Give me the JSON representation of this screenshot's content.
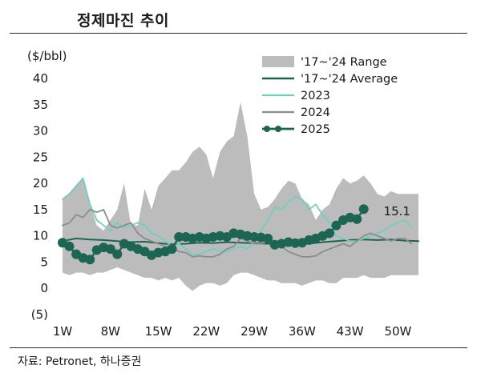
{
  "page": {
    "title": "정제마진 추이",
    "source": "자료: Petronet, 하나증권"
  },
  "colors": {
    "range_fill": "#bcbcbc",
    "average": "#1d6553",
    "y2023": "#6fd0c0",
    "y2024": "#8c8c8c",
    "y2025": "#1d6553"
  },
  "chart_data": {
    "type": "line",
    "ylabel": "($/bbl)",
    "ylim": [
      -5,
      40
    ],
    "yticks": [
      40,
      35,
      30,
      25,
      20,
      15,
      10,
      5,
      0,
      -5
    ],
    "ytick_labels": [
      "40",
      "35",
      "30",
      "25",
      "20",
      "15",
      "10",
      "5",
      "0",
      "(5)"
    ],
    "xlim": [
      1,
      53
    ],
    "xticks": [
      1,
      8,
      15,
      22,
      29,
      36,
      43,
      50
    ],
    "xtick_labels": [
      "1W",
      "8W",
      "15W",
      "22W",
      "29W",
      "36W",
      "43W",
      "50W"
    ],
    "annotation": {
      "text": "15.1",
      "week": 41,
      "value": 15.1
    },
    "legend": [
      "'17~'24 Range",
      "'17~'24 Average",
      "2023",
      "2024",
      "2025"
    ],
    "range": {
      "name": "'17~'24 Range",
      "upper": [
        [
          1,
          17
        ],
        [
          2,
          18
        ],
        [
          3,
          19.5
        ],
        [
          4,
          21
        ],
        [
          5,
          16
        ],
        [
          6,
          12
        ],
        [
          7,
          11
        ],
        [
          8,
          13
        ],
        [
          9,
          15
        ],
        [
          10,
          20
        ],
        [
          11,
          12
        ],
        [
          12,
          12
        ],
        [
          13,
          19
        ],
        [
          14,
          15
        ],
        [
          15,
          19.5
        ],
        [
          16,
          21
        ],
        [
          17,
          22.5
        ],
        [
          18,
          22.5
        ],
        [
          19,
          24
        ],
        [
          20,
          26
        ],
        [
          21,
          27
        ],
        [
          22,
          25.5
        ],
        [
          23,
          21
        ],
        [
          24,
          26
        ],
        [
          25,
          28
        ],
        [
          26,
          29
        ],
        [
          27,
          35.5
        ],
        [
          28,
          29
        ],
        [
          29,
          18
        ],
        [
          30,
          15
        ],
        [
          31,
          15.5
        ],
        [
          32,
          17
        ],
        [
          33,
          19
        ],
        [
          34,
          20.5
        ],
        [
          35,
          20
        ],
        [
          36,
          17
        ],
        [
          37,
          16
        ],
        [
          38,
          13
        ],
        [
          39,
          15
        ],
        [
          40,
          16
        ],
        [
          41,
          19
        ],
        [
          42,
          21
        ],
        [
          43,
          20
        ],
        [
          44,
          20.5
        ],
        [
          45,
          21.5
        ],
        [
          46,
          20
        ],
        [
          47,
          18
        ],
        [
          48,
          17.5
        ],
        [
          49,
          18.5
        ],
        [
          50,
          18
        ],
        [
          51,
          18
        ],
        [
          52,
          18
        ],
        [
          53,
          18
        ]
      ],
      "lower": [
        [
          1,
          3
        ],
        [
          2,
          2.5
        ],
        [
          3,
          3
        ],
        [
          4,
          3
        ],
        [
          5,
          2.5
        ],
        [
          6,
          3
        ],
        [
          7,
          3
        ],
        [
          8,
          3.5
        ],
        [
          9,
          4
        ],
        [
          10,
          3.5
        ],
        [
          11,
          3
        ],
        [
          12,
          2.5
        ],
        [
          13,
          2
        ],
        [
          14,
          2
        ],
        [
          15,
          1.5
        ],
        [
          16,
          2
        ],
        [
          17,
          1.5
        ],
        [
          18,
          2
        ],
        [
          19,
          0.5
        ],
        [
          20,
          -0.5
        ],
        [
          21,
          0.5
        ],
        [
          22,
          1
        ],
        [
          23,
          1
        ],
        [
          24,
          0.5
        ],
        [
          25,
          1
        ],
        [
          26,
          2.5
        ],
        [
          27,
          3
        ],
        [
          28,
          3
        ],
        [
          29,
          2.5
        ],
        [
          30,
          2
        ],
        [
          31,
          1.5
        ],
        [
          32,
          1.5
        ],
        [
          33,
          1
        ],
        [
          34,
          1
        ],
        [
          35,
          1
        ],
        [
          36,
          0.5
        ],
        [
          37,
          1
        ],
        [
          38,
          1.5
        ],
        [
          39,
          1.5
        ],
        [
          40,
          1
        ],
        [
          41,
          1
        ],
        [
          42,
          2
        ],
        [
          43,
          2
        ],
        [
          44,
          2
        ],
        [
          45,
          2.5
        ],
        [
          46,
          2
        ],
        [
          47,
          2
        ],
        [
          48,
          2
        ],
        [
          49,
          2.5
        ],
        [
          50,
          2.5
        ],
        [
          51,
          2.5
        ],
        [
          52,
          2.5
        ],
        [
          53,
          2.5
        ]
      ]
    },
    "series": [
      {
        "name": "'17~'24 Average",
        "color": "#1d6553",
        "width": 2,
        "points": [
          [
            1,
            9
          ],
          [
            3,
            9.5
          ],
          [
            5,
            9.3
          ],
          [
            7,
            9.2
          ],
          [
            9,
            9
          ],
          [
            11,
            8.8
          ],
          [
            13,
            8.9
          ],
          [
            15,
            8.6
          ],
          [
            17,
            8.4
          ],
          [
            19,
            8.5
          ],
          [
            21,
            8.7
          ],
          [
            23,
            8.6
          ],
          [
            25,
            8.8
          ],
          [
            27,
            8.7
          ],
          [
            29,
            8.6
          ],
          [
            31,
            8.5
          ],
          [
            33,
            8.4
          ],
          [
            35,
            8.6
          ],
          [
            37,
            8.5
          ],
          [
            39,
            8.8
          ],
          [
            41,
            9
          ],
          [
            43,
            9.2
          ],
          [
            45,
            9.3
          ],
          [
            47,
            9.2
          ],
          [
            49,
            9.3
          ],
          [
            51,
            9.1
          ],
          [
            53,
            9
          ]
        ]
      },
      {
        "name": "2023",
        "color": "#6fd0c0",
        "width": 1.8,
        "points": [
          [
            1,
            17
          ],
          [
            2,
            18
          ],
          [
            3,
            19.5
          ],
          [
            4,
            21
          ],
          [
            5,
            16
          ],
          [
            6,
            13
          ],
          [
            7,
            12
          ],
          [
            8,
            11
          ],
          [
            9,
            12.5
          ],
          [
            10,
            11.5
          ],
          [
            11,
            12
          ],
          [
            12,
            12.5
          ],
          [
            13,
            12
          ],
          [
            14,
            10.5
          ],
          [
            15,
            10
          ],
          [
            16,
            9
          ],
          [
            17,
            8
          ],
          [
            18,
            8.5
          ],
          [
            19,
            7.5
          ],
          [
            20,
            6.5
          ],
          [
            21,
            6.5
          ],
          [
            22,
            7
          ],
          [
            23,
            7.5
          ],
          [
            24,
            7.2
          ],
          [
            25,
            7
          ],
          [
            26,
            7.5
          ],
          [
            27,
            8
          ],
          [
            28,
            7.5
          ],
          [
            29,
            9
          ],
          [
            30,
            11
          ],
          [
            31,
            13
          ],
          [
            32,
            15.5
          ],
          [
            33,
            15
          ],
          [
            34,
            16.5
          ],
          [
            35,
            17.5
          ],
          [
            36,
            17
          ],
          [
            37,
            15
          ],
          [
            38,
            16
          ],
          [
            39,
            14
          ],
          [
            40,
            12.5
          ],
          [
            41,
            10
          ],
          [
            42,
            9.5
          ],
          [
            43,
            9
          ],
          [
            44,
            9
          ],
          [
            45,
            9.5
          ],
          [
            46,
            10
          ],
          [
            47,
            10.5
          ],
          [
            48,
            11
          ],
          [
            49,
            12
          ],
          [
            50,
            12.5
          ],
          [
            51,
            13
          ],
          [
            52,
            11.5
          ]
        ]
      },
      {
        "name": "2024",
        "color": "#8c8c8c",
        "width": 1.8,
        "points": [
          [
            1,
            12
          ],
          [
            2,
            12.5
          ],
          [
            3,
            14
          ],
          [
            4,
            13.5
          ],
          [
            5,
            15
          ],
          [
            6,
            14.5
          ],
          [
            7,
            15
          ],
          [
            8,
            12
          ],
          [
            9,
            11.5
          ],
          [
            10,
            12
          ],
          [
            11,
            12.5
          ],
          [
            12,
            10.5
          ],
          [
            13,
            9.5
          ],
          [
            14,
            9
          ],
          [
            15,
            8.5
          ],
          [
            16,
            8
          ],
          [
            17,
            8
          ],
          [
            18,
            7
          ],
          [
            19,
            6.8
          ],
          [
            20,
            6
          ],
          [
            21,
            6.2
          ],
          [
            22,
            6
          ],
          [
            23,
            6
          ],
          [
            24,
            6.5
          ],
          [
            25,
            7.5
          ],
          [
            26,
            8
          ],
          [
            27,
            9.5
          ],
          [
            28,
            9
          ],
          [
            29,
            8.5
          ],
          [
            30,
            8.5
          ],
          [
            31,
            9
          ],
          [
            32,
            8.5
          ],
          [
            33,
            8
          ],
          [
            34,
            7
          ],
          [
            35,
            6.5
          ],
          [
            36,
            6
          ],
          [
            37,
            6
          ],
          [
            38,
            6.2
          ],
          [
            39,
            7
          ],
          [
            40,
            7.5
          ],
          [
            41,
            8
          ],
          [
            42,
            8.5
          ],
          [
            43,
            8
          ],
          [
            44,
            9
          ],
          [
            45,
            10
          ],
          [
            46,
            10.5
          ],
          [
            47,
            10
          ],
          [
            48,
            9.5
          ],
          [
            49,
            9
          ],
          [
            50,
            9.5
          ],
          [
            51,
            9.5
          ],
          [
            52,
            8.5
          ]
        ]
      },
      {
        "name": "2025",
        "color": "#1d6553",
        "width": 2.4,
        "markers": true,
        "points": [
          [
            1,
            8.7
          ],
          [
            2,
            8
          ],
          [
            3,
            6.5
          ],
          [
            4,
            5.8
          ],
          [
            5,
            5.5
          ],
          [
            6,
            7.3
          ],
          [
            7,
            7.8
          ],
          [
            8,
            7.5
          ],
          [
            9,
            6.5
          ],
          [
            10,
            8.5
          ],
          [
            11,
            8
          ],
          [
            12,
            7.5
          ],
          [
            13,
            7
          ],
          [
            14,
            6.3
          ],
          [
            15,
            6.8
          ],
          [
            16,
            7
          ],
          [
            17,
            7.5
          ],
          [
            18,
            9.8
          ],
          [
            19,
            9.8
          ],
          [
            20,
            9.5
          ],
          [
            21,
            9.8
          ],
          [
            22,
            9.5
          ],
          [
            23,
            9.8
          ],
          [
            24,
            10
          ],
          [
            25,
            9.8
          ],
          [
            26,
            10.5
          ],
          [
            27,
            10.3
          ],
          [
            28,
            10
          ],
          [
            29,
            9.8
          ],
          [
            30,
            9.7
          ],
          [
            31,
            9.5
          ],
          [
            32,
            8.3
          ],
          [
            33,
            8.5
          ],
          [
            34,
            8.8
          ],
          [
            35,
            8.6
          ],
          [
            36,
            8.7
          ],
          [
            37,
            9.2
          ],
          [
            38,
            9.5
          ],
          [
            39,
            10
          ],
          [
            40,
            10.5
          ],
          [
            41,
            12
          ],
          [
            42,
            13
          ],
          [
            43,
            13.5
          ],
          [
            44,
            13.2
          ],
          [
            45,
            15.1
          ]
        ]
      }
    ]
  }
}
